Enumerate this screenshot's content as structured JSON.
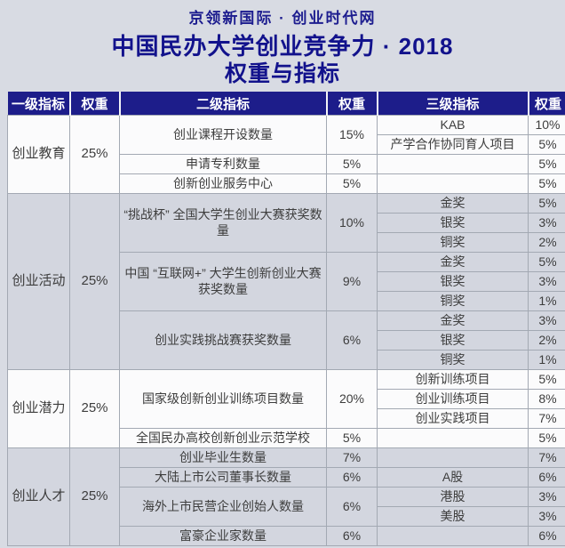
{
  "page": {
    "source_line": "京领新国际 · 创业时代网",
    "title_line": "中国民办大学创业竞争力 · 2018",
    "subtitle_line": "权重与指标"
  },
  "colors": {
    "page_bg": "#d8dbe3",
    "header_bg": "#1d1d8a",
    "title_text": "#12128c",
    "body_text": "#3d3d3d",
    "cell_border": "#a3a9b3",
    "white_block_bg": "#fbfbfc",
    "grey_block_bg": "#d3d6df"
  },
  "table": {
    "headers": [
      "一级指标",
      "权重",
      "二级指标",
      "权重",
      "三级指标",
      "权重"
    ],
    "blocks": [
      {
        "level1": "创业教育",
        "weight": "25%",
        "shade": "white",
        "level2": [
          {
            "name": "创业课程开设数量",
            "weight": "15%",
            "level3": [
              {
                "name": "KAB",
                "weight": "10%"
              },
              {
                "name": "产学合作协同育人项目",
                "weight": "5%"
              }
            ]
          },
          {
            "name": "申请专利数量",
            "weight": "5%",
            "level3": [
              {
                "name": "",
                "weight": "5%"
              }
            ]
          },
          {
            "name": "创新创业服务中心",
            "weight": "5%",
            "level3": [
              {
                "name": "",
                "weight": "5%"
              }
            ]
          }
        ]
      },
      {
        "level1": "创业活动",
        "weight": "25%",
        "shade": "grey",
        "level2": [
          {
            "name": "“挑战杯” 全国大学生创业大赛获奖数量",
            "weight": "10%",
            "level3": [
              {
                "name": "金奖",
                "weight": "5%"
              },
              {
                "name": "银奖",
                "weight": "3%"
              },
              {
                "name": "铜奖",
                "weight": "2%"
              }
            ]
          },
          {
            "name": "中国 “互联网+” 大学生创新创业大赛获奖数量",
            "weight": "9%",
            "level3": [
              {
                "name": "金奖",
                "weight": "5%"
              },
              {
                "name": "银奖",
                "weight": "3%"
              },
              {
                "name": "铜奖",
                "weight": "1%"
              }
            ]
          },
          {
            "name": "创业实践挑战赛获奖数量",
            "weight": "6%",
            "level3": [
              {
                "name": "金奖",
                "weight": "3%"
              },
              {
                "name": "银奖",
                "weight": "2%"
              },
              {
                "name": "铜奖",
                "weight": "1%"
              }
            ]
          }
        ]
      },
      {
        "level1": "创业潜力",
        "weight": "25%",
        "shade": "white",
        "level2": [
          {
            "name": "国家级创新创业训练项目数量",
            "weight": "20%",
            "level3": [
              {
                "name": "创新训练项目",
                "weight": "5%"
              },
              {
                "name": "创业训练项目",
                "weight": "8%"
              },
              {
                "name": "创业实践项目",
                "weight": "7%"
              }
            ]
          },
          {
            "name": "全国民办高校创新创业示范学校",
            "weight": "5%",
            "level3": [
              {
                "name": "",
                "weight": "5%"
              }
            ]
          }
        ]
      },
      {
        "level1": "创业人才",
        "weight": "25%",
        "shade": "grey",
        "level2": [
          {
            "name": "创业毕业生数量",
            "weight": "7%",
            "level3": [
              {
                "name": "",
                "weight": "7%"
              }
            ]
          },
          {
            "name": "大陆上市公司董事长数量",
            "weight": "6%",
            "level3": [
              {
                "name": "A股",
                "weight": "6%"
              }
            ]
          },
          {
            "name": "海外上市民营企业创始人数量",
            "weight": "6%",
            "level3": [
              {
                "name": "港股",
                "weight": "3%"
              },
              {
                "name": "美股",
                "weight": "3%"
              }
            ]
          },
          {
            "name": "富豪企业家数量",
            "weight": "6%",
            "level3": [
              {
                "name": "",
                "weight": "6%"
              }
            ]
          }
        ]
      }
    ]
  }
}
